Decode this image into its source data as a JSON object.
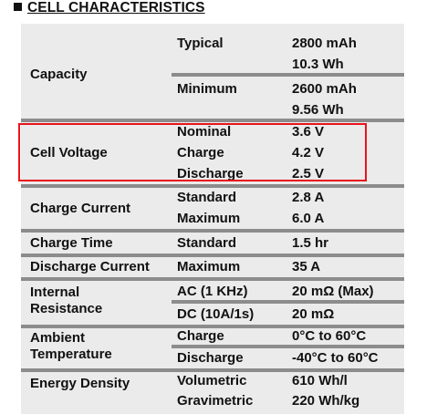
{
  "title": "CELL CHARACTERISTICS",
  "highlight_color": "#e8141b",
  "rows": {
    "capacity": {
      "label": "Capacity",
      "typical": {
        "label": "Typical",
        "value1": "2800 mAh",
        "value2": "10.3 Wh"
      },
      "minimum": {
        "label": "Minimum",
        "value1": "2600 mAh",
        "value2": "9.56 Wh"
      }
    },
    "cell_voltage": {
      "label": "Cell Voltage",
      "nominal": {
        "label": "Nominal",
        "value": "3.6 V"
      },
      "charge": {
        "label": "Charge",
        "value": "4.2 V"
      },
      "discharge": {
        "label": "Discharge",
        "value": "2.5 V"
      }
    },
    "charge_current": {
      "label": "Charge Current",
      "standard": {
        "label": "Standard",
        "value": "2.8 A"
      },
      "maximum": {
        "label": "Maximum",
        "value": "6.0 A"
      }
    },
    "charge_time": {
      "label": "Charge Time",
      "standard": {
        "label": "Standard",
        "value": "1.5 hr"
      }
    },
    "discharge_current": {
      "label": "Discharge Current",
      "maximum": {
        "label": "Maximum",
        "value": "35 A"
      }
    },
    "internal_resistance": {
      "label_line1": "Internal",
      "label_line2": "Resistance",
      "ac": {
        "label": "AC (1 KHz)",
        "value": "20 mΩ (Max)"
      },
      "dc": {
        "label": "DC (10A/1s)",
        "value": "20 mΩ"
      }
    },
    "ambient_temperature": {
      "label_line1": "Ambient",
      "label_line2": "Temperature",
      "charge": {
        "label": "Charge",
        "value": "0°C to 60°C"
      },
      "discharge": {
        "label": "Discharge",
        "value": "-40°C to 60°C"
      }
    },
    "energy_density": {
      "label": "Energy Density",
      "volumetric": {
        "label": "Volumetric",
        "value": "610 Wh/l"
      },
      "gravimetric": {
        "label": "Gravimetric",
        "value": "220 Wh/kg"
      }
    }
  }
}
